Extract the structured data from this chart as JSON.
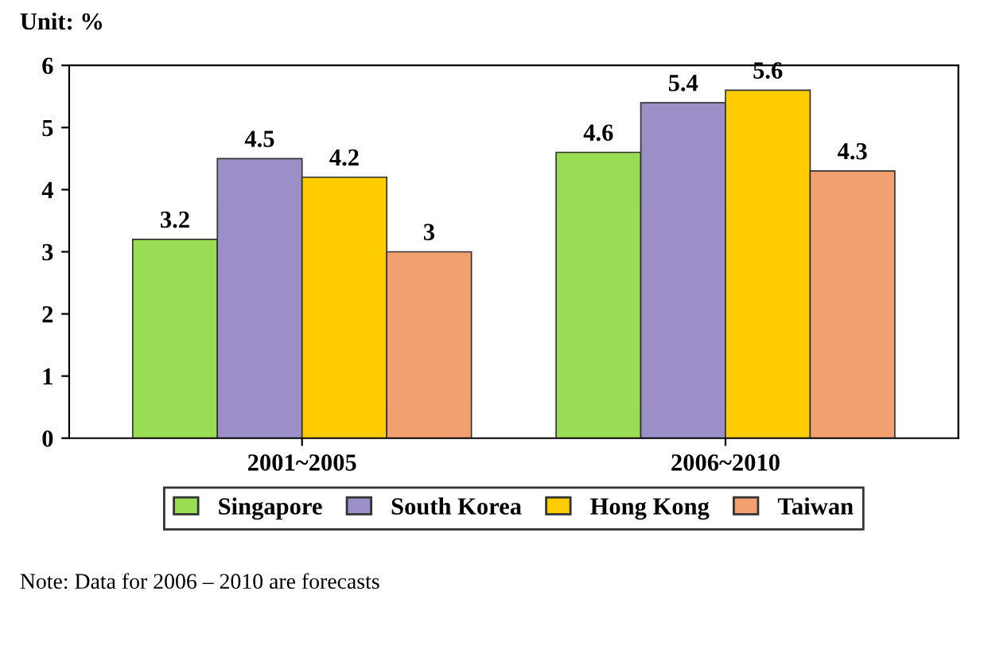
{
  "chart_data": {
    "type": "bar",
    "ylabel": "Unit: %",
    "categories": [
      "2001~2005",
      "2006~2010"
    ],
    "series": [
      {
        "name": "Singapore",
        "color": "#99dd55",
        "values": [
          3.2,
          4.6
        ]
      },
      {
        "name": "South Korea",
        "color": "#9c8fc8",
        "values": [
          4.5,
          5.4
        ]
      },
      {
        "name": "Hong Kong",
        "color": "#ffcc00",
        "values": [
          4.2,
          5.6
        ]
      },
      {
        "name": "Taiwan",
        "color": "#f3a070",
        "values": [
          3,
          4.3
        ]
      }
    ],
    "ylim": [
      0,
      6
    ],
    "yticks": [
      0,
      1,
      2,
      3,
      4,
      5,
      6
    ],
    "data_labels": true,
    "legend": "bottom",
    "annotations": [
      "Note: Data for 2006 – 2010 are forecasts"
    ]
  }
}
